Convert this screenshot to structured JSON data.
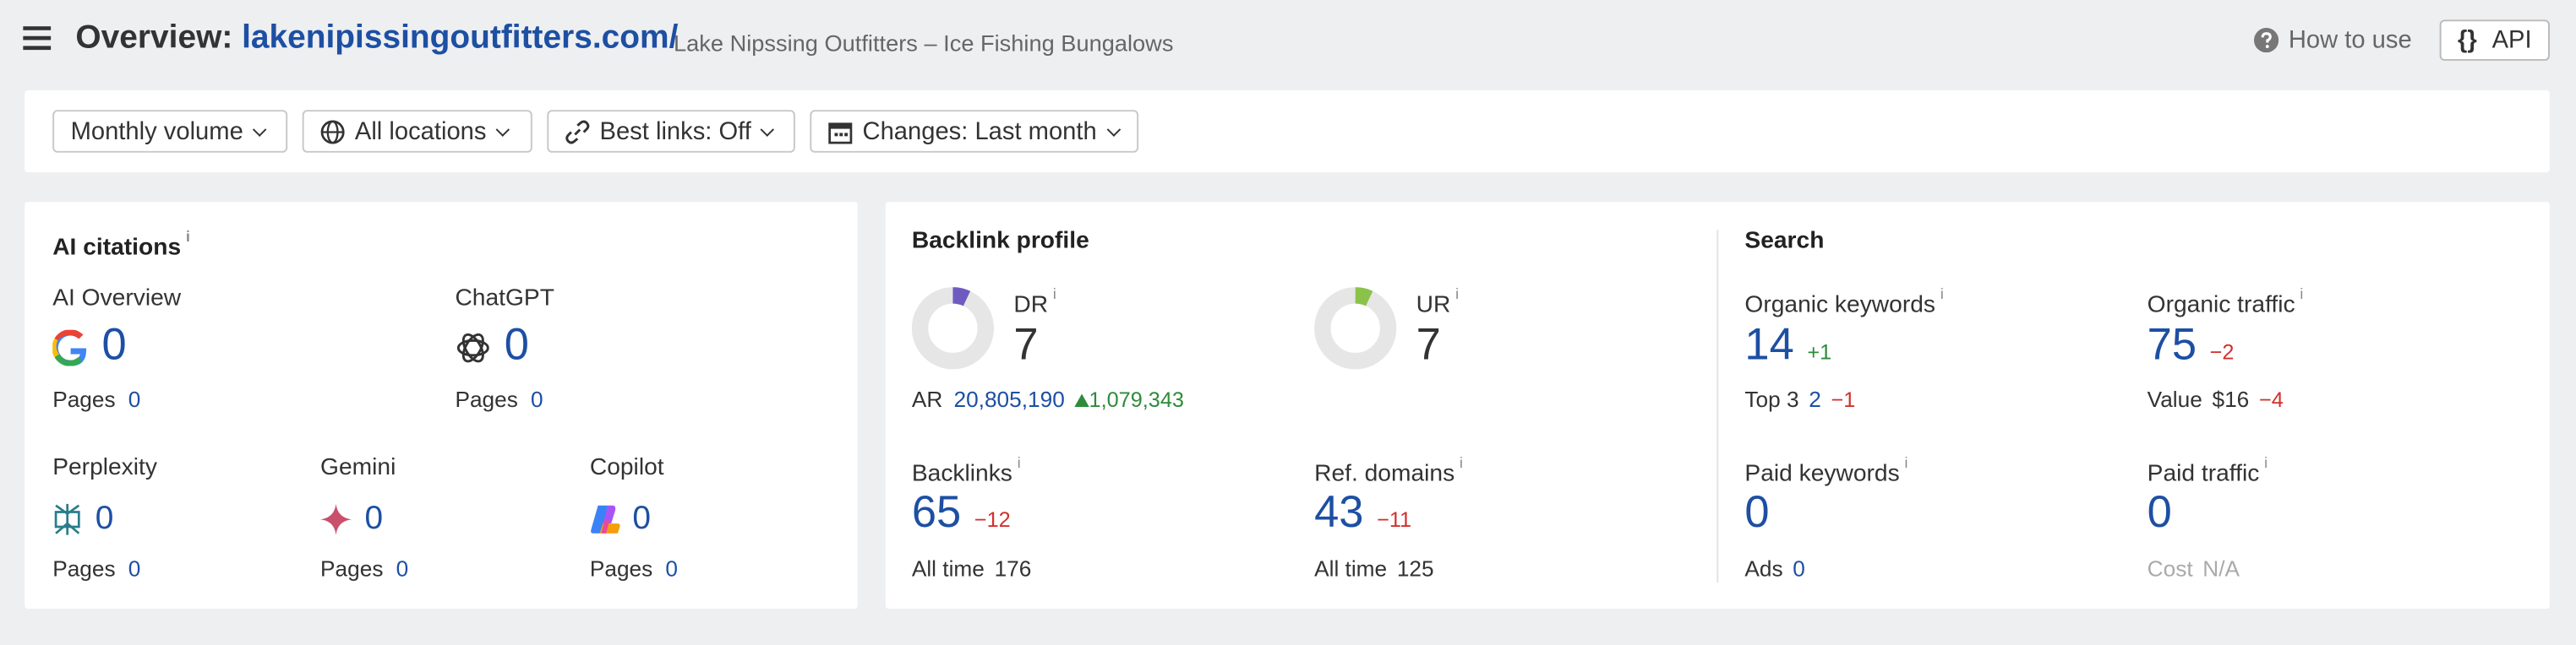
{
  "header": {
    "title": "Overview:",
    "domain": "lakenipissingoutfitters.com/",
    "subtitle": "Lake Nipssing Outfitters – Ice Fishing Bungalows",
    "how_to_use": "How to use",
    "api_icon": "{}",
    "api": "API"
  },
  "info": "i",
  "filters": [
    "Monthly volume",
    "All locations",
    "Best links: Off",
    "Changes: Last month"
  ],
  "ai_citations": {
    "title": "AI citations",
    "items": [
      {
        "name": "AI Overview",
        "value": 0,
        "pages_label": "Pages",
        "pages": 0
      },
      {
        "name": "ChatGPT",
        "value": 0,
        "pages_label": "Pages",
        "pages": 0
      },
      {
        "name": "Perplexity",
        "value": 0,
        "pages_label": "Pages",
        "pages": 0
      },
      {
        "name": "Gemini",
        "value": 0,
        "pages_label": "Pages",
        "pages": 0
      },
      {
        "name": "Copilot",
        "value": 0,
        "pages_label": "Pages",
        "pages": 0
      }
    ]
  },
  "backlink_profile": {
    "title": "Backlink profile",
    "dr": {
      "label": "DR",
      "value": 7
    },
    "ur": {
      "label": "UR",
      "value": 7
    },
    "ar": {
      "label": "AR",
      "value": "20,805,190",
      "change": "1,079,343"
    },
    "backlinks": {
      "label": "Backlinks",
      "value": 65,
      "change": "−12",
      "all_time_label": "All time",
      "all_time": 176
    },
    "ref_domains": {
      "label": "Ref. domains",
      "value": 43,
      "change": "−11",
      "all_time_label": "All time",
      "all_time": 125
    }
  },
  "search": {
    "title": "Search",
    "organic_keywords": {
      "label": "Organic keywords",
      "value": 14,
      "change": "+1",
      "sub_label": "Top 3",
      "sub_value": 2,
      "sub_change": "−1"
    },
    "organic_traffic": {
      "label": "Organic traffic",
      "value": 75,
      "change": "−2",
      "sub_label": "Value",
      "sub_value": "$16",
      "sub_change": "−4"
    },
    "paid_keywords": {
      "label": "Paid keywords",
      "value": 0,
      "sub_label": "Ads",
      "sub_value": 0
    },
    "paid_traffic": {
      "label": "Paid traffic",
      "value": 0,
      "sub_label": "Cost",
      "sub_value": "N/A"
    }
  }
}
